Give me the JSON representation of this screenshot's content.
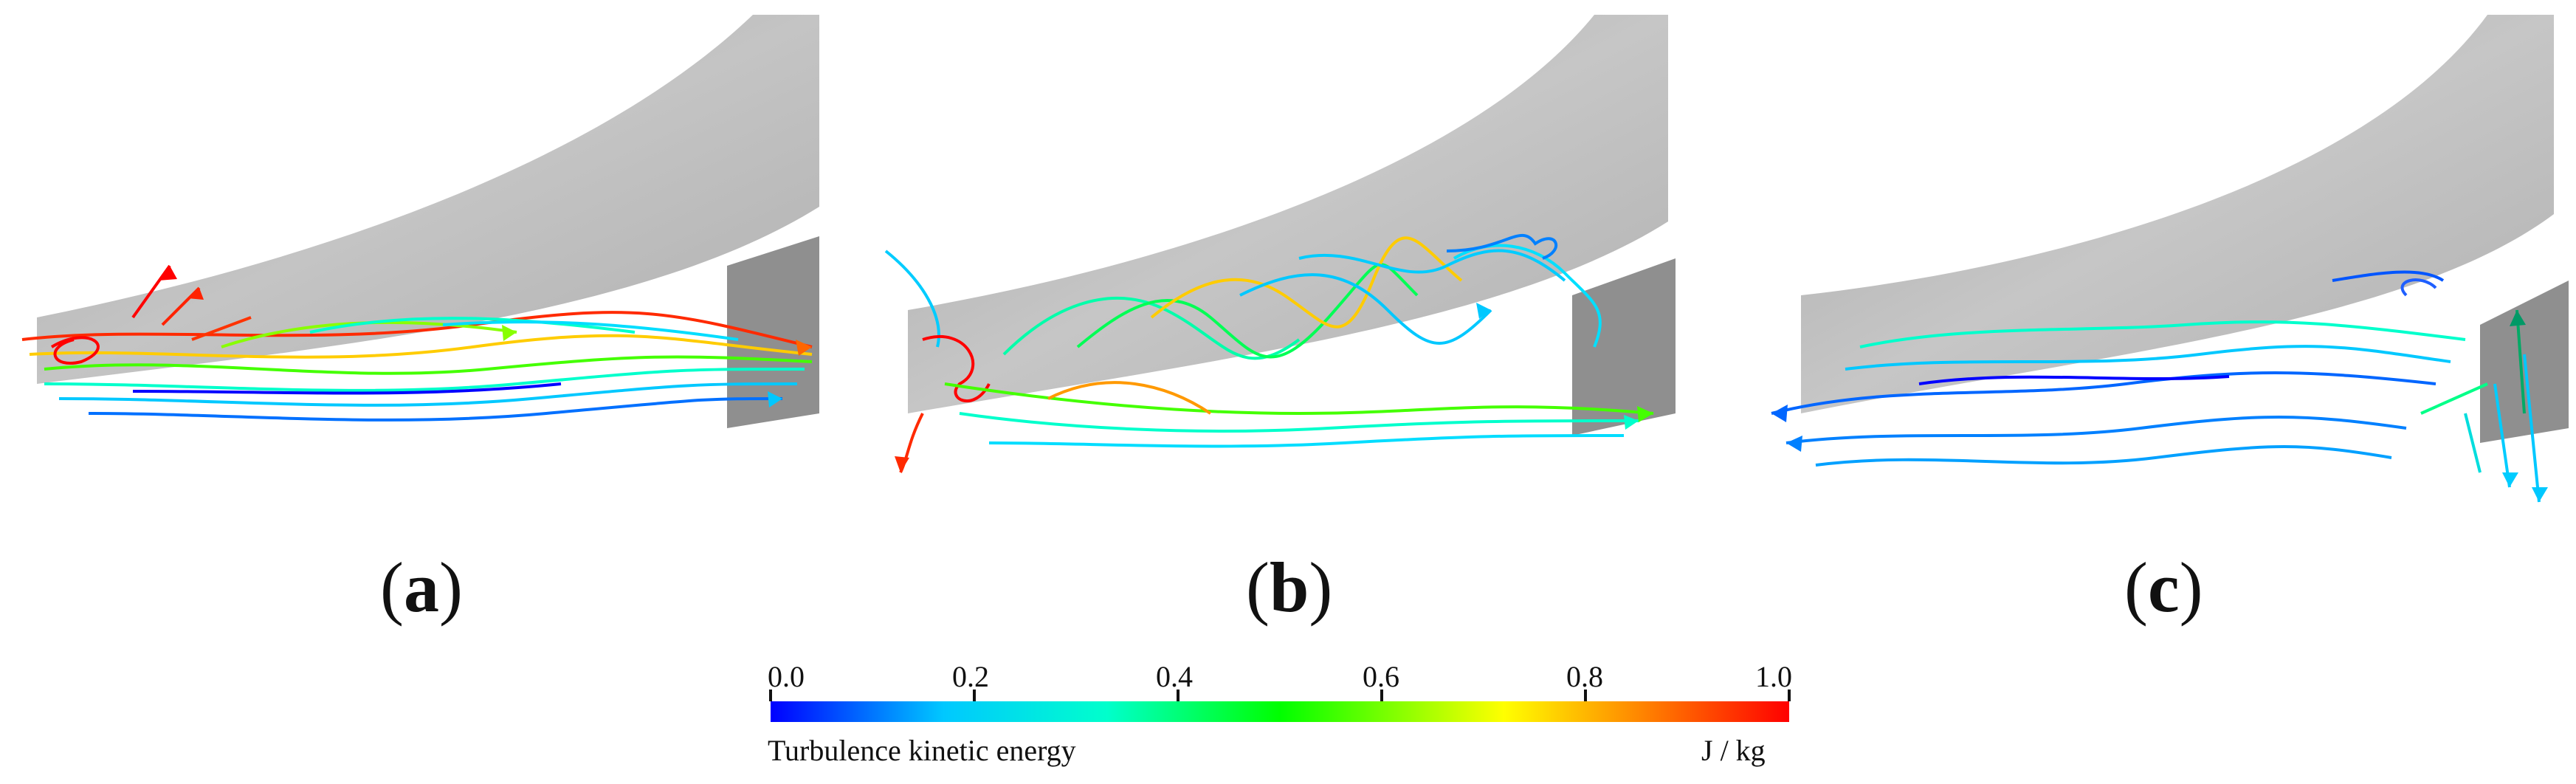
{
  "panels": [
    {
      "label_open": "(",
      "label_letter": "a",
      "label_close": ")"
    },
    {
      "label_open": "(",
      "label_letter": "b",
      "label_close": ")"
    },
    {
      "label_open": "(",
      "label_letter": "c",
      "label_close": ")"
    }
  ],
  "colorbar": {
    "title": "Turbulence kinetic energy",
    "unit": "J / kg",
    "ticks": [
      "0.0",
      "0.2",
      "0.4",
      "0.6",
      "0.8",
      "1.0"
    ],
    "min": 0.0,
    "max": 1.0,
    "colors": [
      "#0000ff",
      "#00c8ff",
      "#00ffcc",
      "#00ff00",
      "#ffff00",
      "#ff8000",
      "#ff0000"
    ]
  },
  "colors": {
    "surface": "#c2c2c2",
    "surface_shadow": "#8f8f8f"
  }
}
